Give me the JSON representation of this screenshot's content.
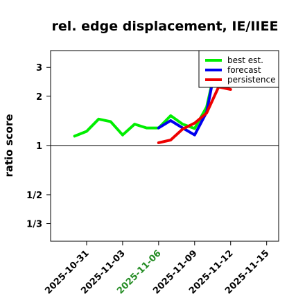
{
  "chart_data": {
    "type": "line",
    "title": "rel. edge displacement, IE/IIEE",
    "ylabel": "ratio score",
    "xlabel": "",
    "y_scale": "log",
    "ylim": [
      0.26,
      3.8
    ],
    "xlim": [
      "2025-10-28",
      "2025-11-16"
    ],
    "reference_line": 1,
    "yticks": [
      {
        "value": 3,
        "label": "3"
      },
      {
        "value": 2,
        "label": "2"
      },
      {
        "value": 1,
        "label": "1"
      },
      {
        "value": 0.5,
        "label": "1/2"
      },
      {
        "value": 0.3333,
        "label": "1/3"
      }
    ],
    "xticks": [
      {
        "date": "2025-10-31",
        "label": "2025-10-31",
        "color": "#000000"
      },
      {
        "date": "2025-11-03",
        "label": "2025-11-03",
        "color": "#000000"
      },
      {
        "date": "2025-11-06",
        "label": "2025-11-06",
        "color": "#228b22"
      },
      {
        "date": "2025-11-09",
        "label": "2025-11-09",
        "color": "#000000"
      },
      {
        "date": "2025-11-12",
        "label": "2025-11-12",
        "color": "#000000"
      },
      {
        "date": "2025-11-15",
        "label": "2025-11-15",
        "color": "#000000"
      }
    ],
    "legend": {
      "placement": "top-right"
    },
    "series": [
      {
        "name": "best est.",
        "color": "#00ee00",
        "points": [
          {
            "x": "2025-10-30",
            "y": 1.14
          },
          {
            "x": "2025-10-31",
            "y": 1.22
          },
          {
            "x": "2025-11-01",
            "y": 1.45
          },
          {
            "x": "2025-11-02",
            "y": 1.4
          },
          {
            "x": "2025-11-03",
            "y": 1.16
          },
          {
            "x": "2025-11-04",
            "y": 1.35
          },
          {
            "x": "2025-11-05",
            "y": 1.28
          },
          {
            "x": "2025-11-06",
            "y": 1.28
          },
          {
            "x": "2025-11-07",
            "y": 1.52
          },
          {
            "x": "2025-11-08",
            "y": 1.35
          },
          {
            "x": "2025-11-09",
            "y": 1.27
          },
          {
            "x": "2025-11-10",
            "y": 1.72
          },
          {
            "x": "2025-11-11",
            "y": 3.6
          }
        ]
      },
      {
        "name": "forecast",
        "color": "#0000ee",
        "points": [
          {
            "x": "2025-11-06",
            "y": 1.28
          },
          {
            "x": "2025-11-07",
            "y": 1.42
          },
          {
            "x": "2025-11-08",
            "y": 1.28
          },
          {
            "x": "2025-11-09",
            "y": 1.16
          },
          {
            "x": "2025-11-10",
            "y": 1.6
          },
          {
            "x": "2025-11-11",
            "y": 3.8
          }
        ]
      },
      {
        "name": "persistence",
        "color": "#ee0000",
        "points": [
          {
            "x": "2025-11-06",
            "y": 1.04
          },
          {
            "x": "2025-11-07",
            "y": 1.08
          },
          {
            "x": "2025-11-08",
            "y": 1.26
          },
          {
            "x": "2025-11-09",
            "y": 1.37
          },
          {
            "x": "2025-11-10",
            "y": 1.58
          },
          {
            "x": "2025-11-11",
            "y": 2.28
          },
          {
            "x": "2025-11-12",
            "y": 2.2
          }
        ]
      }
    ]
  }
}
